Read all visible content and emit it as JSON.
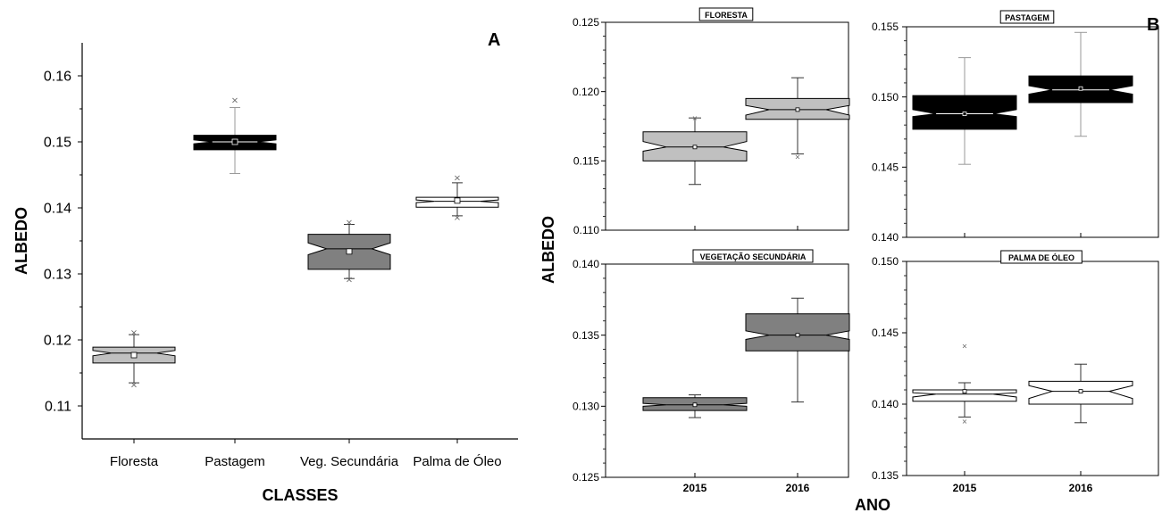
{
  "panel_a": {
    "letter": "A",
    "xlabel": "CLASSES",
    "ylabel": "ALBEDO"
  },
  "panel_b": {
    "letter": "B",
    "xlabel": "ANO",
    "ylabel": "ALBEDO"
  },
  "chart_data": [
    {
      "type": "boxplot",
      "id": "A",
      "xlabel": "CLASSES",
      "ylabel": "ALBEDO",
      "ylim": [
        0.105,
        0.165
      ],
      "yticks": [
        0.11,
        0.12,
        0.13,
        0.14,
        0.15,
        0.16
      ],
      "categories": [
        "Floresta",
        "Pastagem",
        "Veg. Secundária",
        "Palma de Óleo"
      ],
      "boxes": [
        {
          "category": "Floresta",
          "q1": 0.1165,
          "median": 0.118,
          "q3": 0.1189,
          "notch_low": 0.1176,
          "notch_high": 0.1184,
          "whisker_low": 0.1135,
          "whisker_high": 0.1208,
          "mean": 0.1177,
          "outliers": [
            0.1211,
            0.1132
          ],
          "fill": "#c0c0c0"
        },
        {
          "category": "Pastagem",
          "q1": 0.1488,
          "median": 0.15,
          "q3": 0.151,
          "notch_low": 0.1497,
          "notch_high": 0.1503,
          "whisker_low": 0.1452,
          "whisker_high": 0.1552,
          "mean": 0.15,
          "outliers": [
            0.1563
          ],
          "fill": "#000000"
        },
        {
          "category": "Veg. Secundária",
          "q1": 0.1307,
          "median": 0.1338,
          "q3": 0.136,
          "notch_low": 0.1329,
          "notch_high": 0.1347,
          "whisker_low": 0.1293,
          "whisker_high": 0.1375,
          "mean": 0.1334,
          "outliers": [
            0.1378,
            0.1291
          ],
          "fill": "#808080"
        },
        {
          "category": "Palma de Óleo",
          "q1": 0.1401,
          "median": 0.141,
          "q3": 0.1416,
          "notch_low": 0.1408,
          "notch_high": 0.1412,
          "whisker_low": 0.1388,
          "whisker_high": 0.1438,
          "mean": 0.1411,
          "outliers": [
            0.1445,
            0.1385
          ],
          "fill": "#ffffff"
        }
      ]
    },
    {
      "type": "boxplot",
      "id": "B-floresta",
      "title": "FLORESTA",
      "ylim": [
        0.11,
        0.125
      ],
      "yticks": [
        0.11,
        0.115,
        0.12,
        0.125
      ],
      "categories": [
        "2015",
        "2016"
      ],
      "boxes": [
        {
          "category": "2015",
          "q1": 0.115,
          "median": 0.116,
          "q3": 0.1171,
          "notch_low": 0.1157,
          "notch_high": 0.1164,
          "whisker_low": 0.1133,
          "whisker_high": 0.1181,
          "mean": 0.116,
          "outliers": [
            0.1181
          ],
          "fill": "#c0c0c0"
        },
        {
          "category": "2016",
          "q1": 0.118,
          "median": 0.1187,
          "q3": 0.1195,
          "notch_low": 0.1183,
          "notch_high": 0.119,
          "whisker_low": 0.1155,
          "whisker_high": 0.121,
          "mean": 0.1187,
          "outliers": [
            0.1153
          ],
          "fill": "#c0c0c0"
        }
      ]
    },
    {
      "type": "boxplot",
      "id": "B-pastagem",
      "title": "PASTAGEM",
      "ylim": [
        0.14,
        0.155
      ],
      "yticks": [
        0.14,
        0.145,
        0.15,
        0.155
      ],
      "categories": [
        "2015",
        "2016"
      ],
      "boxes": [
        {
          "category": "2015",
          "q1": 0.1477,
          "median": 0.1488,
          "q3": 0.1501,
          "notch_low": 0.1486,
          "notch_high": 0.1491,
          "whisker_low": 0.1452,
          "whisker_high": 0.1528,
          "mean": 0.1488,
          "outliers": [],
          "fill": "#000000"
        },
        {
          "category": "2016",
          "q1": 0.1496,
          "median": 0.1505,
          "q3": 0.1515,
          "notch_low": 0.1502,
          "notch_high": 0.1508,
          "whisker_low": 0.1472,
          "whisker_high": 0.1546,
          "mean": 0.1506,
          "outliers": [],
          "fill": "#000000"
        }
      ]
    },
    {
      "type": "boxplot",
      "id": "B-vegetacao",
      "title": "VEGETAÇÃO SECUNDÁRIA",
      "ylim": [
        0.125,
        0.14
      ],
      "yticks": [
        0.125,
        0.13,
        0.135,
        0.14
      ],
      "categories": [
        "2015",
        "2016"
      ],
      "boxes": [
        {
          "category": "2015",
          "q1": 0.1297,
          "median": 0.1301,
          "q3": 0.1306,
          "notch_low": 0.13,
          "notch_high": 0.1302,
          "whisker_low": 0.1292,
          "whisker_high": 0.1308,
          "mean": 0.1301,
          "outliers": [],
          "fill": "#808080"
        },
        {
          "category": "2016",
          "q1": 0.1339,
          "median": 0.135,
          "q3": 0.1365,
          "notch_low": 0.1347,
          "notch_high": 0.1353,
          "whisker_low": 0.1303,
          "whisker_high": 0.1376,
          "mean": 0.135,
          "outliers": [],
          "fill": "#808080"
        }
      ]
    },
    {
      "type": "boxplot",
      "id": "B-palma",
      "title": "PALMA DE ÓLEO",
      "ylim": [
        0.135,
        0.15
      ],
      "yticks": [
        0.135,
        0.14,
        0.145,
        0.15
      ],
      "categories": [
        "2015",
        "2016"
      ],
      "boxes": [
        {
          "category": "2015",
          "q1": 0.1402,
          "median": 0.1407,
          "q3": 0.141,
          "notch_low": 0.1405,
          "notch_high": 0.1408,
          "whisker_low": 0.1391,
          "whisker_high": 0.1415,
          "mean": 0.1409,
          "outliers": [
            0.1441,
            0.1388
          ],
          "fill": "#ffffff"
        },
        {
          "category": "2016",
          "q1": 0.14,
          "median": 0.1409,
          "q3": 0.1416,
          "notch_low": 0.1404,
          "notch_high": 0.1413,
          "whisker_low": 0.1387,
          "whisker_high": 0.1428,
          "mean": 0.1409,
          "outliers": [],
          "fill": "#ffffff"
        }
      ]
    }
  ]
}
